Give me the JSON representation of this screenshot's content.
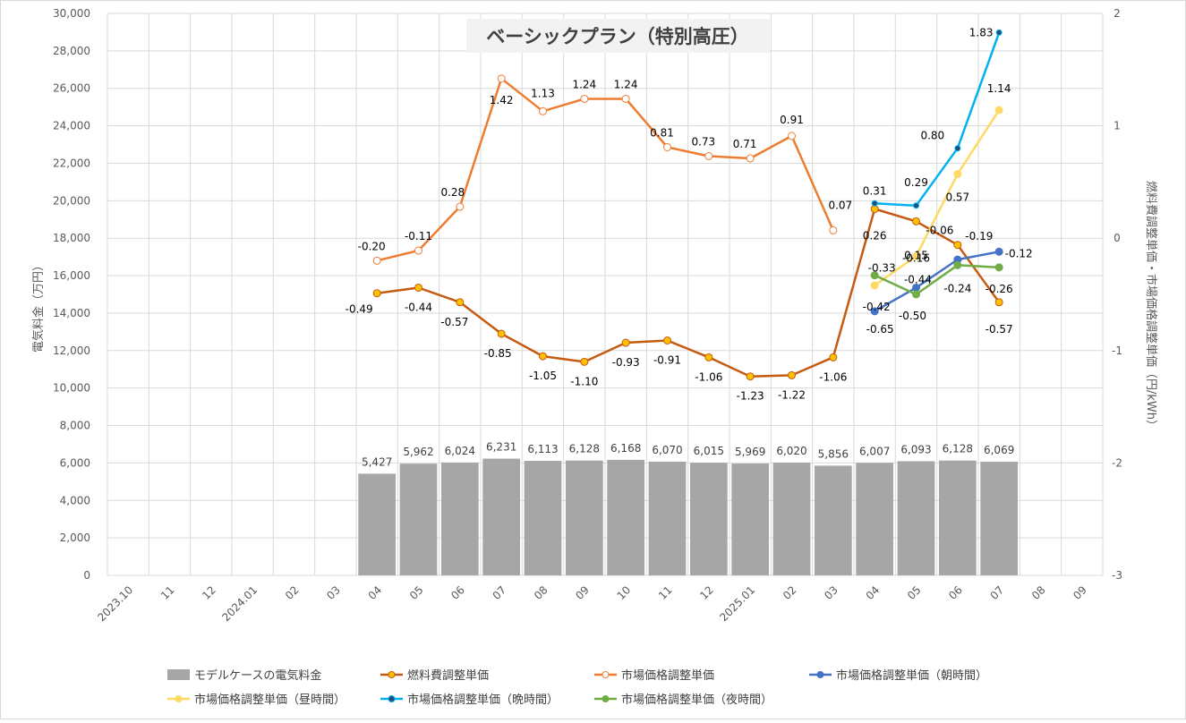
{
  "chart_data": {
    "type": "bar+line",
    "title": "ベーシックプラン（特別高圧）",
    "categories": [
      "2023.10",
      "11",
      "12",
      "2024.01",
      "02",
      "03",
      "04",
      "05",
      "06",
      "07",
      "08",
      "09",
      "10",
      "11",
      "12",
      "2025.01",
      "02",
      "03",
      "04",
      "05",
      "06",
      "07",
      "08",
      "09"
    ],
    "y_left": {
      "label": "電気料金（万円）",
      "min": 0,
      "max": 30000,
      "step": 2000,
      "ticks": [
        "0",
        "2,000",
        "4,000",
        "6,000",
        "8,000",
        "10,000",
        "12,000",
        "14,000",
        "16,000",
        "18,000",
        "20,000",
        "22,000",
        "24,000",
        "26,000",
        "28,000",
        "30,000"
      ]
    },
    "y_right": {
      "label": "燃料費調整単価・市場価格調整単価（円/kWh）",
      "min": -3,
      "max": 2,
      "step": 1,
      "ticks": [
        "-3",
        "-2",
        "-1",
        "0",
        "1",
        "2"
      ]
    },
    "bar_series": {
      "name": "モデルケースの電気料金",
      "color": "#a6a6a6",
      "values": [
        null,
        null,
        null,
        null,
        null,
        null,
        5427,
        5962,
        6024,
        6231,
        6113,
        6128,
        6168,
        6070,
        6015,
        5969,
        6020,
        5856,
        6007,
        6093,
        6128,
        6069,
        null,
        null
      ],
      "labels": [
        "",
        "",
        "",
        "",
        "",
        "",
        "5,427",
        "5,962",
        "6,024",
        "6,231",
        "6,113",
        "6,128",
        "6,168",
        "6,070",
        "6,015",
        "5,969",
        "6,020",
        "5,856",
        "6,007",
        "6,093",
        "6,128",
        "6,069",
        "",
        ""
      ]
    },
    "line_series": [
      {
        "name": "燃料費調整単価",
        "color": "#c55a11",
        "marker": "#ffc000",
        "values": [
          null,
          null,
          null,
          null,
          null,
          null,
          -0.49,
          -0.44,
          -0.57,
          -0.85,
          -1.05,
          -1.1,
          -0.93,
          -0.91,
          -1.06,
          -1.23,
          -1.22,
          -1.06,
          0.26,
          0.15,
          -0.06,
          -0.57,
          null,
          null
        ],
        "labels": [
          "",
          "",
          "",
          "",
          "",
          "",
          "-0.49",
          "-0.44",
          "-0.57",
          "-0.85",
          "-1.05",
          "-1.10",
          "-0.93",
          "-0.91",
          "-1.06",
          "-1.23",
          "-1.22",
          "-1.06",
          "0.26",
          "0.15",
          "-0.06",
          "-0.57",
          "",
          ""
        ]
      },
      {
        "name": "市場価格調整単価",
        "color": "#ed7d31",
        "marker": "#ffffff",
        "values": [
          null,
          null,
          null,
          null,
          null,
          null,
          -0.2,
          -0.11,
          0.28,
          1.42,
          1.13,
          1.24,
          1.24,
          0.81,
          0.73,
          0.71,
          0.91,
          0.07,
          null,
          null,
          null,
          null,
          null,
          null
        ],
        "labels": [
          "",
          "",
          "",
          "",
          "",
          "",
          "-0.20",
          "-0.11",
          "0.28",
          "1.42",
          "1.13",
          "1.24",
          "1.24",
          "0.81",
          "0.73",
          "0.71",
          "0.91",
          "0.07",
          "",
          "",
          "",
          "",
          "",
          ""
        ]
      },
      {
        "name": "市場価格調整単価（朝時間）",
        "color": "#4472c4",
        "marker": "#4472c4",
        "values": [
          null,
          null,
          null,
          null,
          null,
          null,
          null,
          null,
          null,
          null,
          null,
          null,
          null,
          null,
          null,
          null,
          null,
          null,
          -0.65,
          -0.44,
          -0.19,
          -0.12,
          null,
          null
        ],
        "labels": [
          "",
          "",
          "",
          "",
          "",
          "",
          "",
          "",
          "",
          "",
          "",
          "",
          "",
          "",
          "",
          "",
          "",
          "",
          "-0.65",
          "-0.44",
          "-0.19",
          "-0.12",
          "",
          ""
        ]
      },
      {
        "name": "市場価格調整単価（昼時間）",
        "color": "#ffd966",
        "marker": "#ffd966",
        "values": [
          null,
          null,
          null,
          null,
          null,
          null,
          null,
          null,
          null,
          null,
          null,
          null,
          null,
          null,
          null,
          null,
          null,
          null,
          -0.42,
          -0.16,
          0.57,
          1.14,
          null,
          null
        ],
        "labels": [
          "",
          "",
          "",
          "",
          "",
          "",
          "",
          "",
          "",
          "",
          "",
          "",
          "",
          "",
          "",
          "",
          "",
          "",
          "-0.42",
          "-0.16",
          "0.57",
          "1.14",
          "",
          ""
        ]
      },
      {
        "name": "市場価格調整単価（晩時間）",
        "color": "#00b0f0",
        "marker": "#1f4e79",
        "values": [
          null,
          null,
          null,
          null,
          null,
          null,
          null,
          null,
          null,
          null,
          null,
          null,
          null,
          null,
          null,
          null,
          null,
          null,
          0.31,
          0.29,
          0.8,
          1.83,
          null,
          null
        ],
        "labels": [
          "",
          "",
          "",
          "",
          "",
          "",
          "",
          "",
          "",
          "",
          "",
          "",
          "",
          "",
          "",
          "",
          "",
          "",
          "0.31",
          "0.29",
          "0.80",
          "1.83",
          "",
          ""
        ]
      },
      {
        "name": "市場価格調整単価（夜時間）",
        "color": "#70ad47",
        "marker": "#70ad47",
        "values": [
          null,
          null,
          null,
          null,
          null,
          null,
          null,
          null,
          null,
          null,
          null,
          null,
          null,
          null,
          null,
          null,
          null,
          null,
          -0.33,
          -0.5,
          -0.24,
          -0.26,
          null,
          null
        ],
        "labels": [
          "",
          "",
          "",
          "",
          "",
          "",
          "",
          "",
          "",
          "",
          "",
          "",
          "",
          "",
          "",
          "",
          "",
          "",
          "-0.33",
          "-0.50",
          "-0.24",
          "-0.26",
          "",
          ""
        ]
      }
    ],
    "legend": [
      "モデルケースの電気料金",
      "燃料費調整単価",
      "市場価格調整単価",
      "市場価格調整単価（朝時間）",
      "市場価格調整単価（昼時間）",
      "市場価格調整単価（晩時間）",
      "市場価格調整単価（夜時間）"
    ],
    "legend_position": "bottom",
    "grid": true
  }
}
